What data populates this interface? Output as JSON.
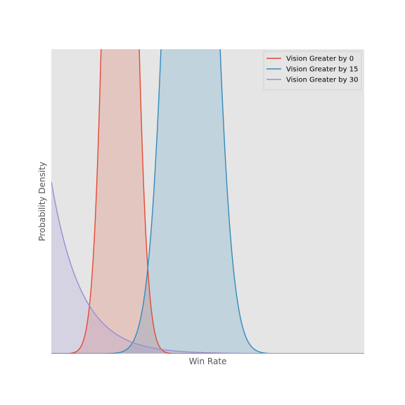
{
  "chart_data": {
    "type": "area",
    "title": "",
    "xlabel": "Win Rate",
    "ylabel": "Probability Density",
    "x_ticks_visible": false,
    "y_ticks_visible": false,
    "xlim": [
      0.0,
      1.0
    ],
    "ylim": [
      0.0,
      1.0
    ],
    "grid": false,
    "legend_position": "top-right",
    "background_color": "#e5e5e5",
    "series": [
      {
        "name": "Vision Greater by 0",
        "color": "#e24a33",
        "distribution": "approx. normal",
        "peak_x": 0.22,
        "spread": 0.04,
        "peak_exceeds_ylim": true,
        "fill": true
      },
      {
        "name": "Vision Greater by 15",
        "color": "#348abd",
        "distribution": "approx. normal",
        "peak_x": 0.445,
        "spread": 0.062,
        "peak_exceeds_ylim": true,
        "fill": true
      },
      {
        "name": "Vision Greater by 30",
        "color": "#988ed5",
        "distribution": "exponential decay",
        "value_at_x0": 0.565,
        "decay_rate": 10.5,
        "fill": true
      }
    ]
  }
}
